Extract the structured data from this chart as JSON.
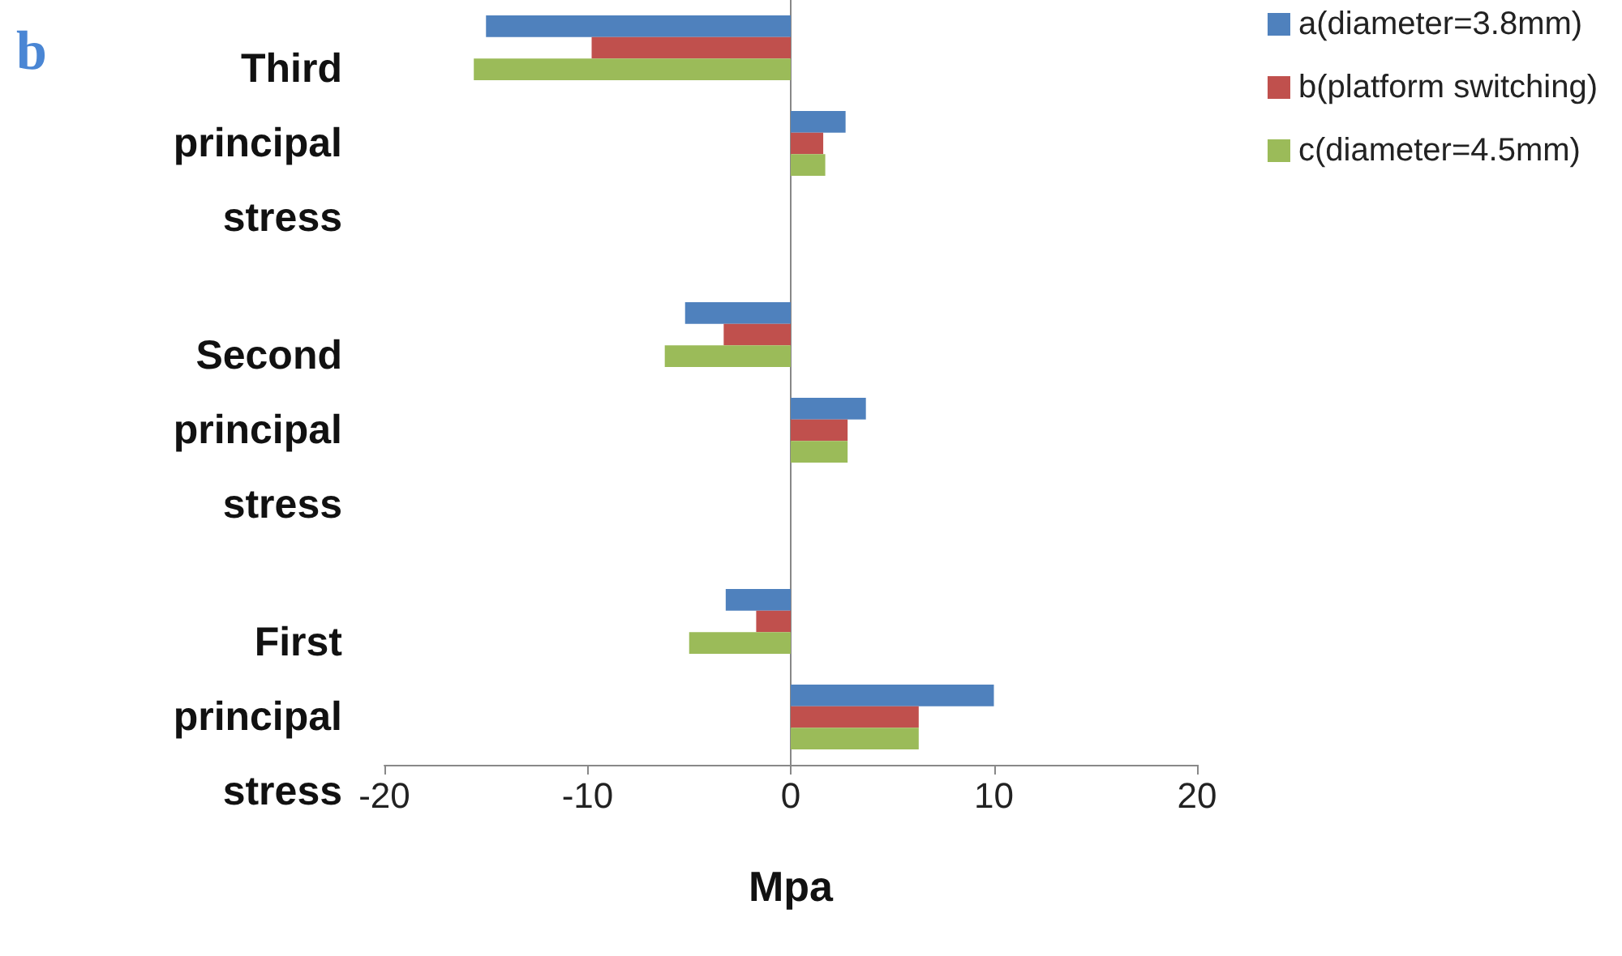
{
  "chart_data": {
    "type": "bar",
    "orientation": "horizontal",
    "xlabel": "Mpa",
    "annotations": [
      "b"
    ],
    "categories": [
      null,
      "Third principal stress",
      null,
      null,
      "Second principal stress",
      null,
      null,
      "First principal stress"
    ],
    "series": [
      {
        "name": "a(diameter=3.8mm)",
        "color": "#4f81bd",
        "values": [
          -15,
          2.7,
          null,
          -5.2,
          3.7,
          null,
          -3.2,
          10.0
        ]
      },
      {
        "name": "b(platform switching)",
        "color": "#c0504d",
        "values": [
          -9.8,
          1.6,
          null,
          -3.3,
          2.8,
          null,
          -1.7,
          6.3
        ]
      },
      {
        "name": "c(diameter=4.5mm)",
        "color": "#9bbb59",
        "values": [
          -15.6,
          1.7,
          null,
          -6.2,
          2.8,
          null,
          -5.0,
          6.3
        ]
      }
    ],
    "xlim": [
      -20,
      20
    ],
    "xticks": [
      -20,
      -10,
      0,
      10,
      20
    ],
    "legend": "top right"
  }
}
